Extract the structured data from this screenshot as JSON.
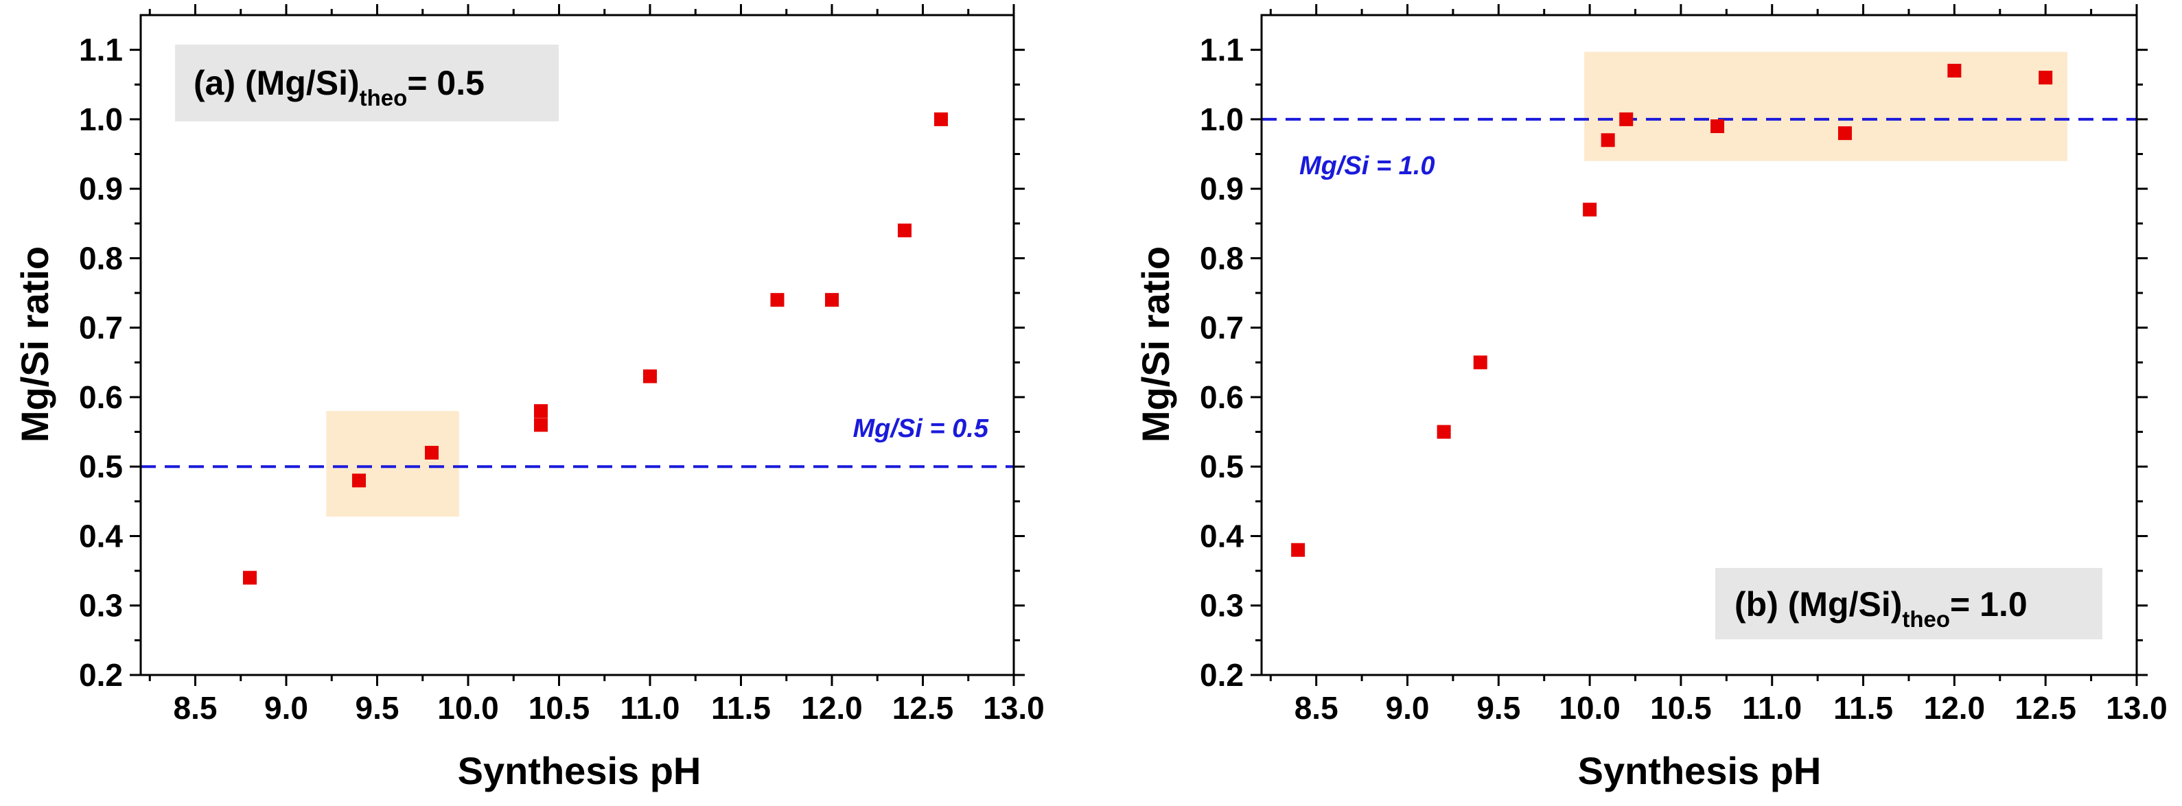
{
  "colors": {
    "marker": "#e60000",
    "reference_line": "#1a1adb",
    "highlight": "#fde9cc",
    "label_box": "#e6e6e6",
    "axis": "#000000"
  },
  "chart_data": [
    {
      "type": "scatter",
      "panel_label": {
        "prefix": "(a) (Mg/Si)",
        "subscript": "theo",
        "suffix": "= 0.5"
      },
      "xlabel": "Synthesis pH",
      "ylabel": "Mg/Si ratio",
      "xlim": [
        8.2,
        13.0
      ],
      "ylim": [
        0.2,
        1.15
      ],
      "x_ticks": [
        "8.5",
        "9.0",
        "9.5",
        "10.0",
        "10.5",
        "11.0",
        "11.5",
        "12.0",
        "12.5",
        "13.0"
      ],
      "y_ticks": [
        "0.2",
        "0.3",
        "0.4",
        "0.5",
        "0.6",
        "0.7",
        "0.8",
        "0.9",
        "1.0",
        "1.1"
      ],
      "series": [
        {
          "name": "Mg/Si ratio",
          "x": [
            8.8,
            9.4,
            9.8,
            10.4,
            10.4,
            11.0,
            11.7,
            12.0,
            12.4,
            12.6
          ],
          "y": [
            0.34,
            0.48,
            0.52,
            0.58,
            0.56,
            0.63,
            0.74,
            0.74,
            0.84,
            1.0
          ]
        }
      ],
      "reference_line": {
        "y": 0.5,
        "label": "Mg/Si = 0.5"
      },
      "highlight_region": {
        "x": [
          9.22,
          9.95
        ],
        "y": [
          0.428,
          0.58
        ]
      }
    },
    {
      "type": "scatter",
      "panel_label": {
        "prefix": "(b) (Mg/Si)",
        "subscript": "theo",
        "suffix": "= 1.0"
      },
      "xlabel": "Synthesis pH",
      "ylabel": "Mg/Si ratio",
      "xlim": [
        8.2,
        13.0
      ],
      "ylim": [
        0.2,
        1.15
      ],
      "x_ticks": [
        "8.5",
        "9.0",
        "9.5",
        "10.0",
        "10.5",
        "11.0",
        "11.5",
        "12.0",
        "12.5",
        "13.0"
      ],
      "y_ticks": [
        "0.2",
        "0.3",
        "0.4",
        "0.5",
        "0.6",
        "0.7",
        "0.8",
        "0.9",
        "1.0",
        "1.1"
      ],
      "series": [
        {
          "name": "Mg/Si ratio",
          "x": [
            8.4,
            9.2,
            9.4,
            10.0,
            10.1,
            10.2,
            10.7,
            11.4,
            12.0,
            12.5
          ],
          "y": [
            0.38,
            0.55,
            0.65,
            0.87,
            0.97,
            1.0,
            0.99,
            0.98,
            1.07,
            1.06
          ]
        }
      ],
      "reference_line": {
        "y": 1.0,
        "label": "Mg/Si = 1.0"
      },
      "highlight_region": {
        "x": [
          9.97,
          12.62
        ],
        "y": [
          0.94,
          1.097
        ]
      }
    }
  ]
}
